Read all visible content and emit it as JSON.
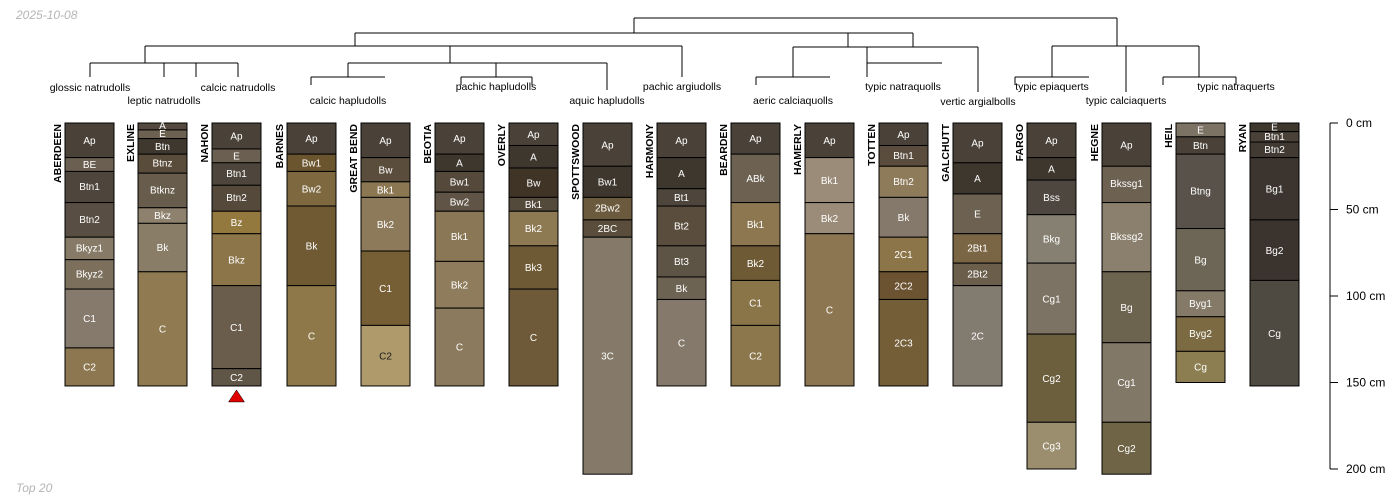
{
  "header": {
    "date": "2025-10-08"
  },
  "footer": {
    "label": "Top 20"
  },
  "depth_axis": {
    "unit": "cm",
    "max_depth": 200,
    "ticks": [
      {
        "value": 0,
        "label": "0 cm"
      },
      {
        "value": 50,
        "label": "50 cm"
      },
      {
        "value": 100,
        "label": "100 cm"
      },
      {
        "value": 150,
        "label": "150 cm"
      },
      {
        "value": 200,
        "label": "200 cm"
      }
    ]
  },
  "taxa": [
    "glossic natrudolls",
    "leptic natrudolls",
    "calcic natrudolls",
    "calcic hapludolls",
    "pachic hapludolls",
    "aquic hapludolls",
    "pachic argiudolls",
    "aeric calciaquolls",
    "typic natraquolls",
    "vertic argialbolls",
    "typic epiaquerts",
    "typic calciaquerts",
    "typic natraquerts"
  ],
  "marker": {
    "profile": "NAHON",
    "shape": "triangle",
    "color": "#e00000"
  },
  "profiles": [
    {
      "name": "ABERDEEN",
      "horizons": [
        {
          "name": "Ap",
          "top": 0,
          "bottom": 20,
          "color": "#4a4238"
        },
        {
          "name": "BE",
          "top": 20,
          "bottom": 28,
          "color": "#6a5f50"
        },
        {
          "name": "Btn1",
          "top": 28,
          "bottom": 46,
          "color": "#4e463c"
        },
        {
          "name": "Btn2",
          "top": 46,
          "bottom": 66,
          "color": "#584e43"
        },
        {
          "name": "Bkyz1",
          "top": 66,
          "bottom": 79,
          "color": "#877b68"
        },
        {
          "name": "Bkyz2",
          "top": 79,
          "bottom": 96,
          "color": "#7c705d"
        },
        {
          "name": "C1",
          "top": 96,
          "bottom": 130,
          "color": "#857a6b"
        },
        {
          "name": "C2",
          "top": 130,
          "bottom": 152,
          "color": "#8c7750"
        }
      ]
    },
    {
      "name": "EXLINE",
      "horizons": [
        {
          "name": "A",
          "top": 0,
          "bottom": 4,
          "color": "#54493e"
        },
        {
          "name": "E",
          "top": 4,
          "bottom": 9,
          "color": "#6d6252"
        },
        {
          "name": "Btn",
          "top": 9,
          "bottom": 18,
          "color": "#3f382f"
        },
        {
          "name": "Btnz",
          "top": 18,
          "bottom": 29,
          "color": "#5a4c3b"
        },
        {
          "name": "Btknz",
          "top": 29,
          "bottom": 49,
          "color": "#685c4c"
        },
        {
          "name": "Bkz",
          "top": 49,
          "bottom": 58,
          "color": "#8e826e"
        },
        {
          "name": "Bk",
          "top": 58,
          "bottom": 86,
          "color": "#8a7d68"
        },
        {
          "name": "C",
          "top": 86,
          "bottom": 152,
          "color": "#907a52"
        }
      ]
    },
    {
      "name": "NAHON",
      "horizons": [
        {
          "name": "Ap",
          "top": 0,
          "bottom": 15,
          "color": "#4a4238"
        },
        {
          "name": "E",
          "top": 15,
          "bottom": 23,
          "color": "#6a5f50"
        },
        {
          "name": "Btn1",
          "top": 23,
          "bottom": 36,
          "color": "#4e463c"
        },
        {
          "name": "Btn2",
          "top": 36,
          "bottom": 51,
          "color": "#55493c"
        },
        {
          "name": "Bz",
          "top": 51,
          "bottom": 64,
          "color": "#94793f"
        },
        {
          "name": "Bkz",
          "top": 64,
          "bottom": 94,
          "color": "#8c7548"
        },
        {
          "name": "C1",
          "top": 94,
          "bottom": 142,
          "color": "#6b5d4b"
        },
        {
          "name": "C2",
          "top": 142,
          "bottom": 152,
          "color": "#5f5648"
        }
      ]
    },
    {
      "name": "BARNES",
      "horizons": [
        {
          "name": "Ap",
          "top": 0,
          "bottom": 18,
          "color": "#4a4238"
        },
        {
          "name": "Bw1",
          "top": 18,
          "bottom": 28,
          "color": "#6a552e"
        },
        {
          "name": "Bw2",
          "top": 28,
          "bottom": 48,
          "color": "#7d6840"
        },
        {
          "name": "Bk",
          "top": 48,
          "bottom": 94,
          "color": "#6f5a33"
        },
        {
          "name": "C",
          "top": 94,
          "bottom": 152,
          "color": "#8e7849"
        }
      ]
    },
    {
      "name": "GREAT BEND",
      "horizons": [
        {
          "name": "Ap",
          "top": 0,
          "bottom": 20,
          "color": "#4a4238"
        },
        {
          "name": "Bw",
          "top": 20,
          "bottom": 34,
          "color": "#5a4d3c"
        },
        {
          "name": "Bk1",
          "top": 34,
          "bottom": 43,
          "color": "#8b7752"
        },
        {
          "name": "Bk2",
          "top": 43,
          "bottom": 74,
          "color": "#8c7a5a"
        },
        {
          "name": "C1",
          "top": 74,
          "bottom": 117,
          "color": "#765e35"
        },
        {
          "name": "C2",
          "top": 117,
          "bottom": 152,
          "color": "#ae9a6b"
        }
      ]
    },
    {
      "name": "BEOTIA",
      "horizons": [
        {
          "name": "Ap",
          "top": 0,
          "bottom": 18,
          "color": "#4a4238"
        },
        {
          "name": "A",
          "top": 18,
          "bottom": 28,
          "color": "#3e372e"
        },
        {
          "name": "Bw1",
          "top": 28,
          "bottom": 40,
          "color": "#54493b"
        },
        {
          "name": "Bw2",
          "top": 40,
          "bottom": 51,
          "color": "#5f5446"
        },
        {
          "name": "Bk1",
          "top": 51,
          "bottom": 80,
          "color": "#8a7755"
        },
        {
          "name": "Bk2",
          "top": 80,
          "bottom": 107,
          "color": "#8e7c5c"
        },
        {
          "name": "C",
          "top": 107,
          "bottom": 152,
          "color": "#8c7a5e"
        }
      ]
    },
    {
      "name": "OVERLY",
      "horizons": [
        {
          "name": "Ap",
          "top": 0,
          "bottom": 13,
          "color": "#4a4238"
        },
        {
          "name": "A",
          "top": 13,
          "bottom": 26,
          "color": "#3e372e"
        },
        {
          "name": "Bw",
          "top": 26,
          "bottom": 43,
          "color": "#3f3426"
        },
        {
          "name": "Bk1",
          "top": 43,
          "bottom": 51,
          "color": "#544a3c"
        },
        {
          "name": "Bk2",
          "top": 51,
          "bottom": 71,
          "color": "#8e7a52"
        },
        {
          "name": "Bk3",
          "top": 71,
          "bottom": 96,
          "color": "#6e5a34"
        },
        {
          "name": "C",
          "top": 96,
          "bottom": 152,
          "color": "#6e5a38"
        }
      ]
    },
    {
      "name": "SPOTTSWOOD",
      "horizons": [
        {
          "name": "Ap",
          "top": 0,
          "bottom": 25,
          "color": "#4a4238"
        },
        {
          "name": "Bw1",
          "top": 25,
          "bottom": 43,
          "color": "#3e372e"
        },
        {
          "name": "2Bw2",
          "top": 43,
          "bottom": 56,
          "color": "#6c5a3e"
        },
        {
          "name": "2BC",
          "top": 56,
          "bottom": 66,
          "color": "#5a4d3c"
        },
        {
          "name": "3C",
          "top": 66,
          "bottom": 203,
          "color": "#857a69"
        }
      ]
    },
    {
      "name": "HARMONY",
      "horizons": [
        {
          "name": "Ap",
          "top": 0,
          "bottom": 20,
          "color": "#4a4238"
        },
        {
          "name": "A",
          "top": 20,
          "bottom": 38,
          "color": "#3e372e"
        },
        {
          "name": "Bt1",
          "top": 38,
          "bottom": 48,
          "color": "#4e463c"
        },
        {
          "name": "Bt2",
          "top": 48,
          "bottom": 71,
          "color": "#5a4d3e"
        },
        {
          "name": "Bt3",
          "top": 71,
          "bottom": 89,
          "color": "#5e5446"
        },
        {
          "name": "Bk",
          "top": 89,
          "bottom": 102,
          "color": "#6d6352"
        },
        {
          "name": "C",
          "top": 102,
          "bottom": 152,
          "color": "#84796a"
        }
      ]
    },
    {
      "name": "BEARDEN",
      "horizons": [
        {
          "name": "Ap",
          "top": 0,
          "bottom": 18,
          "color": "#4a4238"
        },
        {
          "name": "ABk",
          "top": 18,
          "bottom": 46,
          "color": "#6d6252"
        },
        {
          "name": "Bk1",
          "top": 46,
          "bottom": 71,
          "color": "#8c7751"
        },
        {
          "name": "Bk2",
          "top": 71,
          "bottom": 91,
          "color": "#6e5a35"
        },
        {
          "name": "C1",
          "top": 91,
          "bottom": 117,
          "color": "#8a7548"
        },
        {
          "name": "C2",
          "top": 117,
          "bottom": 152,
          "color": "#8c774c"
        }
      ]
    },
    {
      "name": "HAMERLY",
      "horizons": [
        {
          "name": "Ap",
          "top": 0,
          "bottom": 20,
          "color": "#4a4238"
        },
        {
          "name": "Bk1",
          "top": 20,
          "bottom": 46,
          "color": "#9a8c78"
        },
        {
          "name": "Bk2",
          "top": 46,
          "bottom": 64,
          "color": "#9a8c78"
        },
        {
          "name": "C",
          "top": 64,
          "bottom": 152,
          "color": "#8c7651"
        }
      ]
    },
    {
      "name": "TOTTEN",
      "horizons": [
        {
          "name": "Ap",
          "top": 0,
          "bottom": 13,
          "color": "#4a4238"
        },
        {
          "name": "Btn1",
          "top": 13,
          "bottom": 25,
          "color": "#5a4d3e"
        },
        {
          "name": "Btn2",
          "top": 25,
          "bottom": 43,
          "color": "#8e7b5a"
        },
        {
          "name": "Bk",
          "top": 43,
          "bottom": 66,
          "color": "#84796a"
        },
        {
          "name": "2C1",
          "top": 66,
          "bottom": 86,
          "color": "#8c7548"
        },
        {
          "name": "2C2",
          "top": 86,
          "bottom": 102,
          "color": "#6b5230"
        },
        {
          "name": "2C3",
          "top": 102,
          "bottom": 152,
          "color": "#735e38"
        }
      ]
    },
    {
      "name": "GALCHUTT",
      "horizons": [
        {
          "name": "Ap",
          "top": 0,
          "bottom": 23,
          "color": "#4a4238"
        },
        {
          "name": "A",
          "top": 23,
          "bottom": 41,
          "color": "#3e372e"
        },
        {
          "name": "E",
          "top": 41,
          "bottom": 64,
          "color": "#6d6252"
        },
        {
          "name": "2Bt1",
          "top": 64,
          "bottom": 81,
          "color": "#7a6545"
        },
        {
          "name": "2Bt2",
          "top": 81,
          "bottom": 94,
          "color": "#6b5f4c"
        },
        {
          "name": "2C",
          "top": 94,
          "bottom": 152,
          "color": "#817b70"
        }
      ]
    },
    {
      "name": "FARGO",
      "horizons": [
        {
          "name": "Ap",
          "top": 0,
          "bottom": 20,
          "color": "#4a4238"
        },
        {
          "name": "A",
          "top": 20,
          "bottom": 33,
          "color": "#3e372e"
        },
        {
          "name": "Bss",
          "top": 33,
          "bottom": 53,
          "color": "#4e4740"
        },
        {
          "name": "Bkg",
          "top": 53,
          "bottom": 81,
          "color": "#858071"
        },
        {
          "name": "Cg1",
          "top": 81,
          "bottom": 122,
          "color": "#7d7364"
        },
        {
          "name": "Cg2",
          "top": 122,
          "bottom": 173,
          "color": "#6b5f3e"
        },
        {
          "name": "Cg3",
          "top": 173,
          "bottom": 200,
          "color": "#9a8e6e"
        }
      ]
    },
    {
      "name": "HEGNE",
      "horizons": [
        {
          "name": "Ap",
          "top": 0,
          "bottom": 25,
          "color": "#4a4238"
        },
        {
          "name": "Bkssg1",
          "top": 25,
          "bottom": 46,
          "color": "#6d6252"
        },
        {
          "name": "Bkssg2",
          "top": 46,
          "bottom": 86,
          "color": "#8a806d"
        },
        {
          "name": "Bg",
          "top": 86,
          "bottom": 127,
          "color": "#6d6450"
        },
        {
          "name": "Cg1",
          "top": 127,
          "bottom": 173,
          "color": "#817868"
        },
        {
          "name": "Cg2",
          "top": 173,
          "bottom": 203,
          "color": "#6f6446"
        }
      ]
    },
    {
      "name": "HEIL",
      "horizons": [
        {
          "name": "E",
          "top": 0,
          "bottom": 8,
          "color": "#7d7365"
        },
        {
          "name": "Btn",
          "top": 8,
          "bottom": 18,
          "color": "#4a4238"
        },
        {
          "name": "Btng",
          "top": 18,
          "bottom": 61,
          "color": "#58524a"
        },
        {
          "name": "Bg",
          "top": 61,
          "bottom": 97,
          "color": "#6d6656"
        },
        {
          "name": "Byg1",
          "top": 97,
          "bottom": 112,
          "color": "#857a68"
        },
        {
          "name": "Byg2",
          "top": 112,
          "bottom": 132,
          "color": "#7b6a42"
        },
        {
          "name": "Cg",
          "top": 132,
          "bottom": 150,
          "color": "#8c7e50"
        }
      ]
    },
    {
      "name": "RYAN",
      "horizons": [
        {
          "name": "E",
          "top": 0,
          "bottom": 5,
          "color": "#3e372e"
        },
        {
          "name": "Btn1",
          "top": 5,
          "bottom": 11,
          "color": "#4a4238"
        },
        {
          "name": "Btn2",
          "top": 11,
          "bottom": 20,
          "color": "#403a33"
        },
        {
          "name": "Bg1",
          "top": 20,
          "bottom": 56,
          "color": "#3c352f"
        },
        {
          "name": "Bg2",
          "top": 56,
          "bottom": 91,
          "color": "#3a332e"
        },
        {
          "name": "Cg",
          "top": 91,
          "bottom": 152,
          "color": "#4f4a41"
        }
      ]
    }
  ]
}
